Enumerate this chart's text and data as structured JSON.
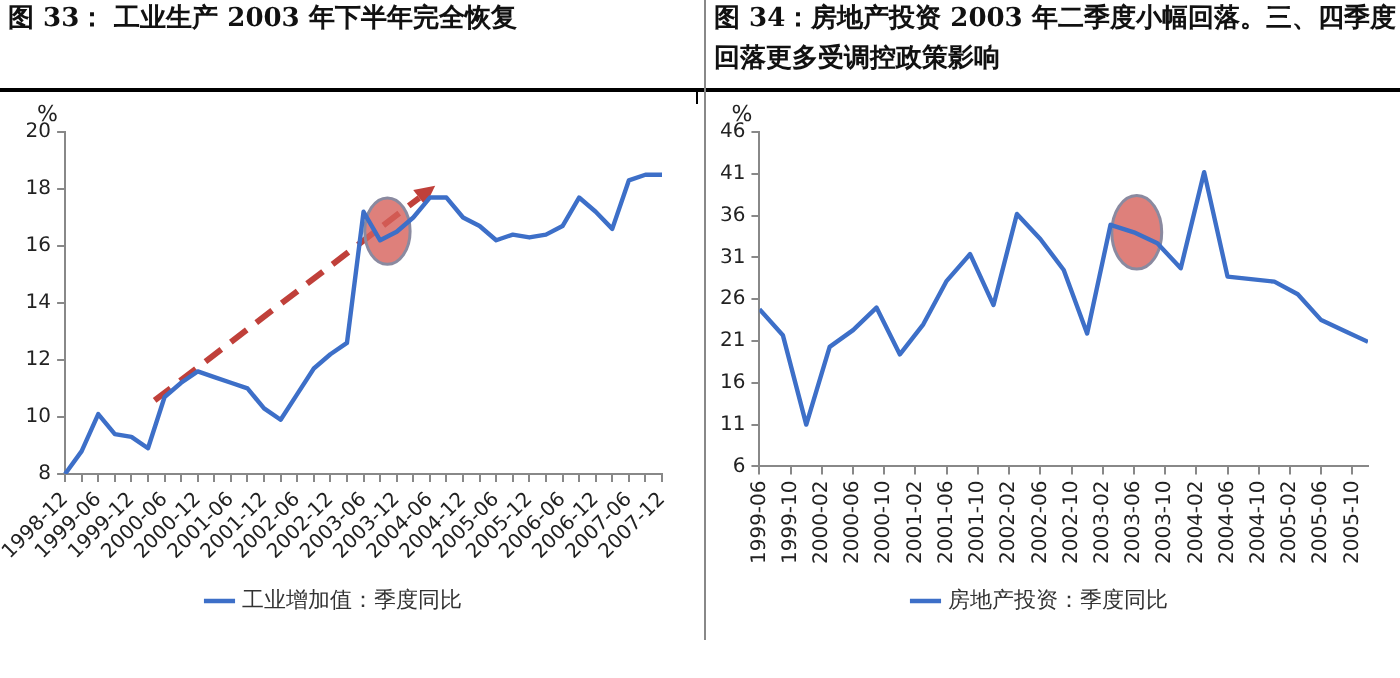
{
  "chart_data": [
    {
      "type": "line",
      "title": "图 33：  工业生产 2003 年下半年完全恢复",
      "ylabel": "%",
      "legend": "bottom",
      "categories": [
        "1998-12",
        null,
        "1999-06",
        null,
        "1999-12",
        null,
        "2000-06",
        null,
        "2000-12",
        null,
        "2001-06",
        null,
        "2001-12",
        null,
        "2002-06",
        null,
        "2002-12",
        null,
        "2003-06",
        null,
        "2003-12",
        null,
        "2004-06",
        null,
        "2004-12",
        null,
        "2005-06",
        null,
        "2005-12",
        null,
        "2006-06",
        null,
        "2006-12",
        null,
        "2007-06",
        null,
        "2007-12"
      ],
      "series": [
        {
          "name": "工业增加值：季度同比",
          "color": "#3d6fc8",
          "values": [
            8.0,
            8.8,
            10.1,
            9.4,
            9.3,
            8.9,
            10.7,
            11.2,
            11.6,
            11.4,
            11.2,
            11.0,
            10.3,
            9.9,
            10.8,
            11.7,
            12.2,
            12.6,
            17.2,
            16.2,
            16.5,
            17.0,
            17.7,
            17.7,
            17.0,
            16.7,
            16.2,
            16.4,
            16.3,
            16.4,
            16.7,
            17.7,
            17.2,
            16.6,
            18.3,
            18.5,
            18.5
          ]
        }
      ],
      "ylim": [
        8,
        20
      ],
      "yticks": [
        8,
        10,
        12,
        14,
        16,
        18,
        20
      ],
      "grid": false,
      "marker": "none",
      "line_style": "solid"
    },
    {
      "type": "line",
      "title": "图 34：房地产投资 2003 年二季度小幅回落。三、四季度回落更多受调控政策影响",
      "ylabel": "%",
      "legend": "bottom",
      "x": [
        "1999-06",
        "1999-09",
        "1999-12",
        "2000-03",
        "2000-06",
        "2000-09",
        "2000-12",
        "2001-03",
        "2001-06",
        "2001-09",
        "2001-12",
        "2002-03",
        "2002-06",
        "2002-09",
        "2002-12",
        "2003-03",
        "2003-06",
        "2003-09",
        "2003-12",
        "2004-03",
        "2004-06",
        "2004-09",
        "2004-12",
        "2005-03",
        "2005-06",
        "2005-09",
        "2005-12"
      ],
      "series": [
        {
          "name": "房地产投资：季度同比",
          "color": "#3d6fc8",
          "values": [
            24.8,
            21.7,
            11.0,
            20.3,
            22.3,
            25.0,
            19.4,
            23.0,
            28.2,
            31.4,
            25.3,
            36.2,
            33.2,
            29.5,
            21.9,
            34.9,
            34.0,
            32.7,
            29.7,
            41.2,
            28.7,
            28.4,
            28.1,
            26.6,
            23.5,
            22.2,
            20.9
          ]
        }
      ],
      "xlim": [
        "1999-06",
        "2005-12"
      ],
      "xticks": [
        "1999-06",
        "1999-10",
        "2000-02",
        "2000-06",
        "2000-10",
        "2001-02",
        "2001-06",
        "2001-10",
        "2002-02",
        "2002-06",
        "2002-10",
        "2003-02",
        "2003-06",
        "2003-10",
        "2004-02",
        "2004-06",
        "2004-10",
        "2005-02",
        "2005-06",
        "2005-10"
      ],
      "ylim": [
        6,
        46
      ],
      "yticks": [
        6,
        11,
        16,
        21,
        26,
        31,
        36,
        41,
        46
      ],
      "grid": false,
      "marker": "none",
      "line_style": "solid"
    }
  ]
}
